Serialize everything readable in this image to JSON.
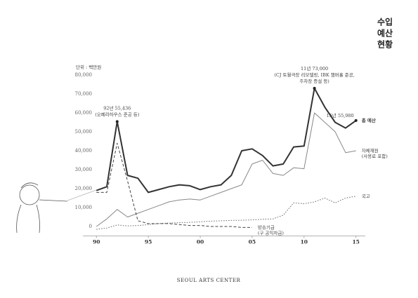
{
  "chart_data": {
    "type": "line",
    "title_lines": [
      "수입",
      "예산",
      "현황"
    ],
    "unit_label": "단위 : 백만원",
    "x": [
      1990,
      1991,
      1992,
      1993,
      1994,
      1995,
      1996,
      1997,
      1998,
      1999,
      2000,
      2001,
      2002,
      2003,
      2004,
      2005,
      2006,
      2007,
      2008,
      2009,
      2010,
      2011,
      2012,
      2013,
      2014,
      2015
    ],
    "xlim": [
      1988.7,
      2015.9
    ],
    "xticks": [
      {
        "value": 1990,
        "label": "90"
      },
      {
        "value": 1995,
        "label": "95"
      },
      {
        "value": 2000,
        "label": "00"
      },
      {
        "value": 2005,
        "label": "05"
      },
      {
        "value": 2010,
        "label": "10"
      },
      {
        "value": 2015,
        "label": "15"
      }
    ],
    "ylim": [
      -5000,
      80000
    ],
    "yticks": [
      0,
      {
        "value": 10000,
        "label": "10,000"
      },
      {
        "value": 20000,
        "label": "20,000"
      },
      {
        "value": 30000,
        "label": "30,000"
      },
      {
        "value": 40000,
        "label": "40,000"
      },
      {
        "value": 50000,
        "label": "50,000"
      },
      {
        "value": 60000,
        "label": "60,000"
      },
      {
        "value": 70000,
        "label": "70,000"
      },
      {
        "value": 80000,
        "label": "80,000"
      }
    ],
    "series": [
      {
        "name": "총 예산",
        "color": "#333333",
        "dash": "solid",
        "width": 2,
        "values": [
          19000,
          21000,
          55436,
          27000,
          25500,
          18000,
          19500,
          21000,
          22000,
          21500,
          19500,
          21000,
          22000,
          27000,
          40000,
          41000,
          37500,
          32000,
          33000,
          42000,
          42500,
          73000,
          63000,
          55000,
          52000,
          55980
        ]
      },
      {
        "name": "자체재원",
        "sublabel": "(사용료 포함)",
        "color": "#888888",
        "dash": "solid",
        "width": 1,
        "values": [
          0,
          4000,
          9000,
          5000,
          7000,
          9000,
          11000,
          13000,
          14000,
          14500,
          14000,
          16000,
          18000,
          20000,
          22000,
          33000,
          35000,
          28000,
          27000,
          31000,
          30500,
          60000,
          55000,
          50000,
          39000,
          40000
        ]
      },
      {
        "name": "국고",
        "color": "#666666",
        "dash": "dotted",
        "width": 1,
        "values": [
          -1500,
          -800,
          800,
          300,
          500,
          1000,
          1500,
          1800,
          2000,
          2200,
          2500,
          2800,
          3000,
          3200,
          3300,
          3500,
          3800,
          4000,
          6000,
          12500,
          12000,
          13000,
          15000,
          12500,
          15000,
          16000
        ]
      },
      {
        "name": "방송기금",
        "sublabel": "(구 공익자금)",
        "color": "#444444",
        "dash": "dashed",
        "width": 1,
        "values": [
          18000,
          18000,
          44000,
          24000,
          3000,
          1500,
          1500,
          1500,
          1000,
          500,
          500,
          0,
          0,
          0,
          -500,
          -500,
          null,
          null,
          null,
          null,
          null,
          null,
          null,
          null,
          null,
          null
        ]
      }
    ],
    "annotations": [
      {
        "index": 2,
        "lines": [
          "92년 55,436",
          "(오페라하우스 준공 등)"
        ]
      },
      {
        "index": 21,
        "lines": [
          "11년 73,000",
          "(CJ 토월극장 리모델링, IBK 챔버홀 준공,",
          "주차장 증설 등)"
        ]
      },
      {
        "index": 25,
        "lines": [
          "15년 55,980"
        ]
      }
    ],
    "footer": "SEOUL ARTS CENTER"
  }
}
